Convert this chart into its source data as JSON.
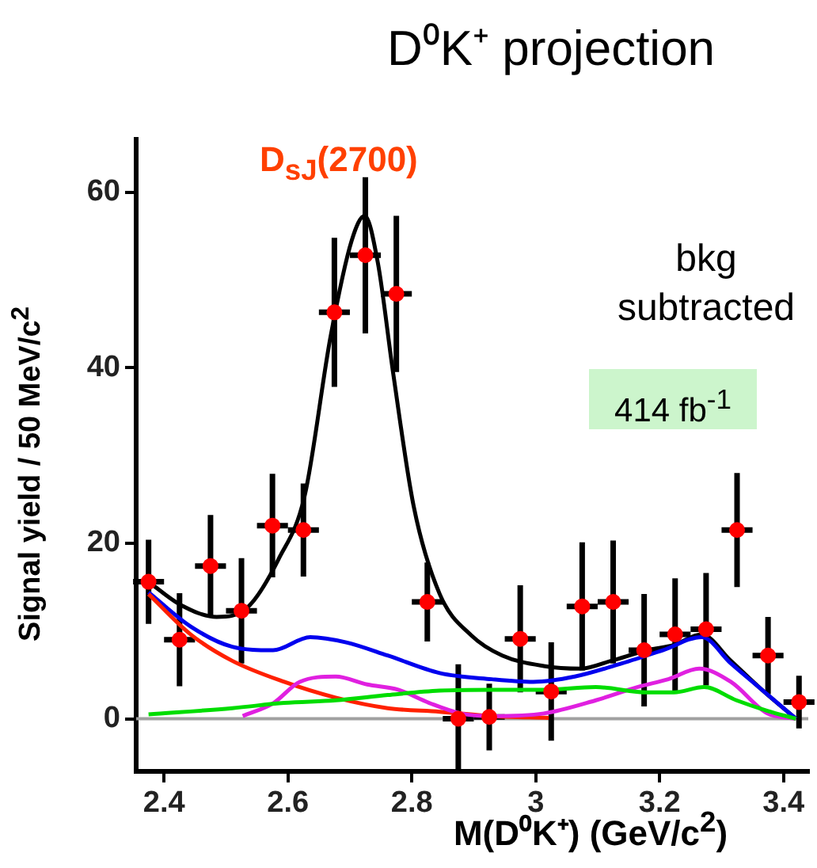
{
  "chart_data": {
    "type": "scatter",
    "title": "D⁰K⁺ projection",
    "xlabel": "M(D⁰K⁺) (GeV/c$^{2}$)",
    "ylabel": "Signal yield / 50 MeV/c$^{2}$",
    "annotations": [
      "D$_{sJ}$(2700)",
      "bkg subtracted",
      "414 fb$^{-1}$"
    ],
    "xlim": [
      2.355,
      3.44
    ],
    "xticks": [
      2.4,
      2.6,
      2.8,
      3,
      3.2,
      3.4
    ],
    "ylim": [
      -6,
      66
    ],
    "yticks": [
      0,
      20,
      40,
      60
    ],
    "grid": false,
    "legend": false,
    "ref_lines": [
      {
        "axis": "y",
        "value": 0,
        "color": "#a0a0a0"
      }
    ],
    "series": [
      {
        "type": "line",
        "color": "#00dd00",
        "marker": "none",
        "x": [
          2.375,
          2.51,
          2.594,
          2.677,
          2.761,
          2.845,
          2.929,
          3.013,
          3.097,
          3.18,
          3.223,
          3.272,
          3.324,
          3.374,
          3.42
        ],
        "values": [
          0.5,
          1.2,
          1.8,
          2.1,
          2.7,
          3.2,
          3.3,
          3.3,
          3.6,
          3.0,
          3.0,
          3.6,
          2.1,
          0.9,
          0
        ]
      },
      {
        "type": "line",
        "color": "#e020e0",
        "marker": "none",
        "x": [
          2.527,
          2.577,
          2.619,
          2.677,
          2.728,
          2.778,
          2.828,
          2.879,
          2.929,
          3.013,
          3.097,
          3.164,
          3.214,
          3.264,
          3.315,
          3.374,
          3.42
        ],
        "values": [
          0.3,
          1.8,
          4.2,
          4.8,
          3.9,
          3.3,
          1.8,
          0.6,
          0.3,
          0.6,
          2.1,
          3.6,
          4.5,
          5.7,
          4.2,
          0.6,
          0
        ]
      },
      {
        "type": "line",
        "color": "#ff2000",
        "marker": "none",
        "x": [
          2.375,
          2.443,
          2.51,
          2.594,
          2.677,
          2.761,
          2.845,
          2.929,
          3.021
        ],
        "values": [
          14.2,
          9.6,
          6.6,
          4.2,
          2.4,
          1.2,
          0.8,
          0.3,
          0.1
        ]
      },
      {
        "type": "line",
        "color": "#0000ee",
        "marker": "none",
        "x": [
          2.375,
          2.443,
          2.51,
          2.576,
          2.636,
          2.694,
          2.761,
          2.845,
          2.929,
          2.996,
          3.063,
          3.139,
          3.205,
          3.268,
          3.315,
          3.365,
          3.42
        ],
        "values": [
          14.4,
          10.5,
          8.2,
          7.8,
          9.3,
          8.7,
          7.2,
          5.2,
          4.5,
          4.2,
          4.8,
          6.3,
          7.8,
          9.3,
          6.3,
          3.3,
          0
        ]
      },
      {
        "type": "line",
        "color": "#000000",
        "marker": "none",
        "x": [
          2.375,
          2.426,
          2.485,
          2.535,
          2.585,
          2.627,
          2.669,
          2.703,
          2.724,
          2.745,
          2.77,
          2.803,
          2.845,
          2.896,
          2.946,
          3.013,
          3.072,
          3.122,
          3.18,
          3.223,
          3.268,
          3.315,
          3.365,
          3.42
        ],
        "values": [
          15.6,
          13.0,
          11.6,
          12.7,
          18.2,
          25.4,
          43.6,
          54.5,
          57.3,
          52,
          39.3,
          24.2,
          14.2,
          9.5,
          7.2,
          6.0,
          5.7,
          6.6,
          7.8,
          8.4,
          9.6,
          6.6,
          3.3,
          0
        ]
      },
      {
        "color": "#ff0000",
        "marker": "circle",
        "x": [
          2.375,
          2.425,
          2.475,
          2.525,
          2.575,
          2.625,
          2.675,
          2.725,
          2.775,
          2.825,
          2.875,
          2.925,
          2.975,
          3.025,
          3.075,
          3.125,
          3.175,
          3.225,
          3.275,
          3.325,
          3.375,
          3.425
        ],
        "values": [
          15.6,
          9.0,
          17.4,
          12.3,
          22.0,
          21.5,
          46.3,
          52.8,
          48.4,
          13.3,
          0,
          0.2,
          9.1,
          3.1,
          12.8,
          13.3,
          7.8,
          9.6,
          10.2,
          21.5,
          7.2,
          1.9
        ],
        "errors": [
          4.8,
          5.3,
          5.8,
          6,
          5.9,
          5.3,
          8.5,
          8.9,
          8.9,
          4.5,
          6.2,
          3.8,
          6.1,
          5.6,
          7.3,
          7,
          6.4,
          6.4,
          6.4,
          6.5,
          4.4,
          3
        ],
        "xerrors": [
          0.025,
          0.025,
          0.025,
          0.025,
          0.025,
          0.025,
          0.025,
          0.025,
          0.025,
          0.025,
          0.025,
          0.025,
          0.025,
          0.025,
          0.025,
          0.025,
          0.025,
          0.025,
          0.025,
          0.025,
          0.025,
          0.025
        ]
      }
    ]
  }
}
